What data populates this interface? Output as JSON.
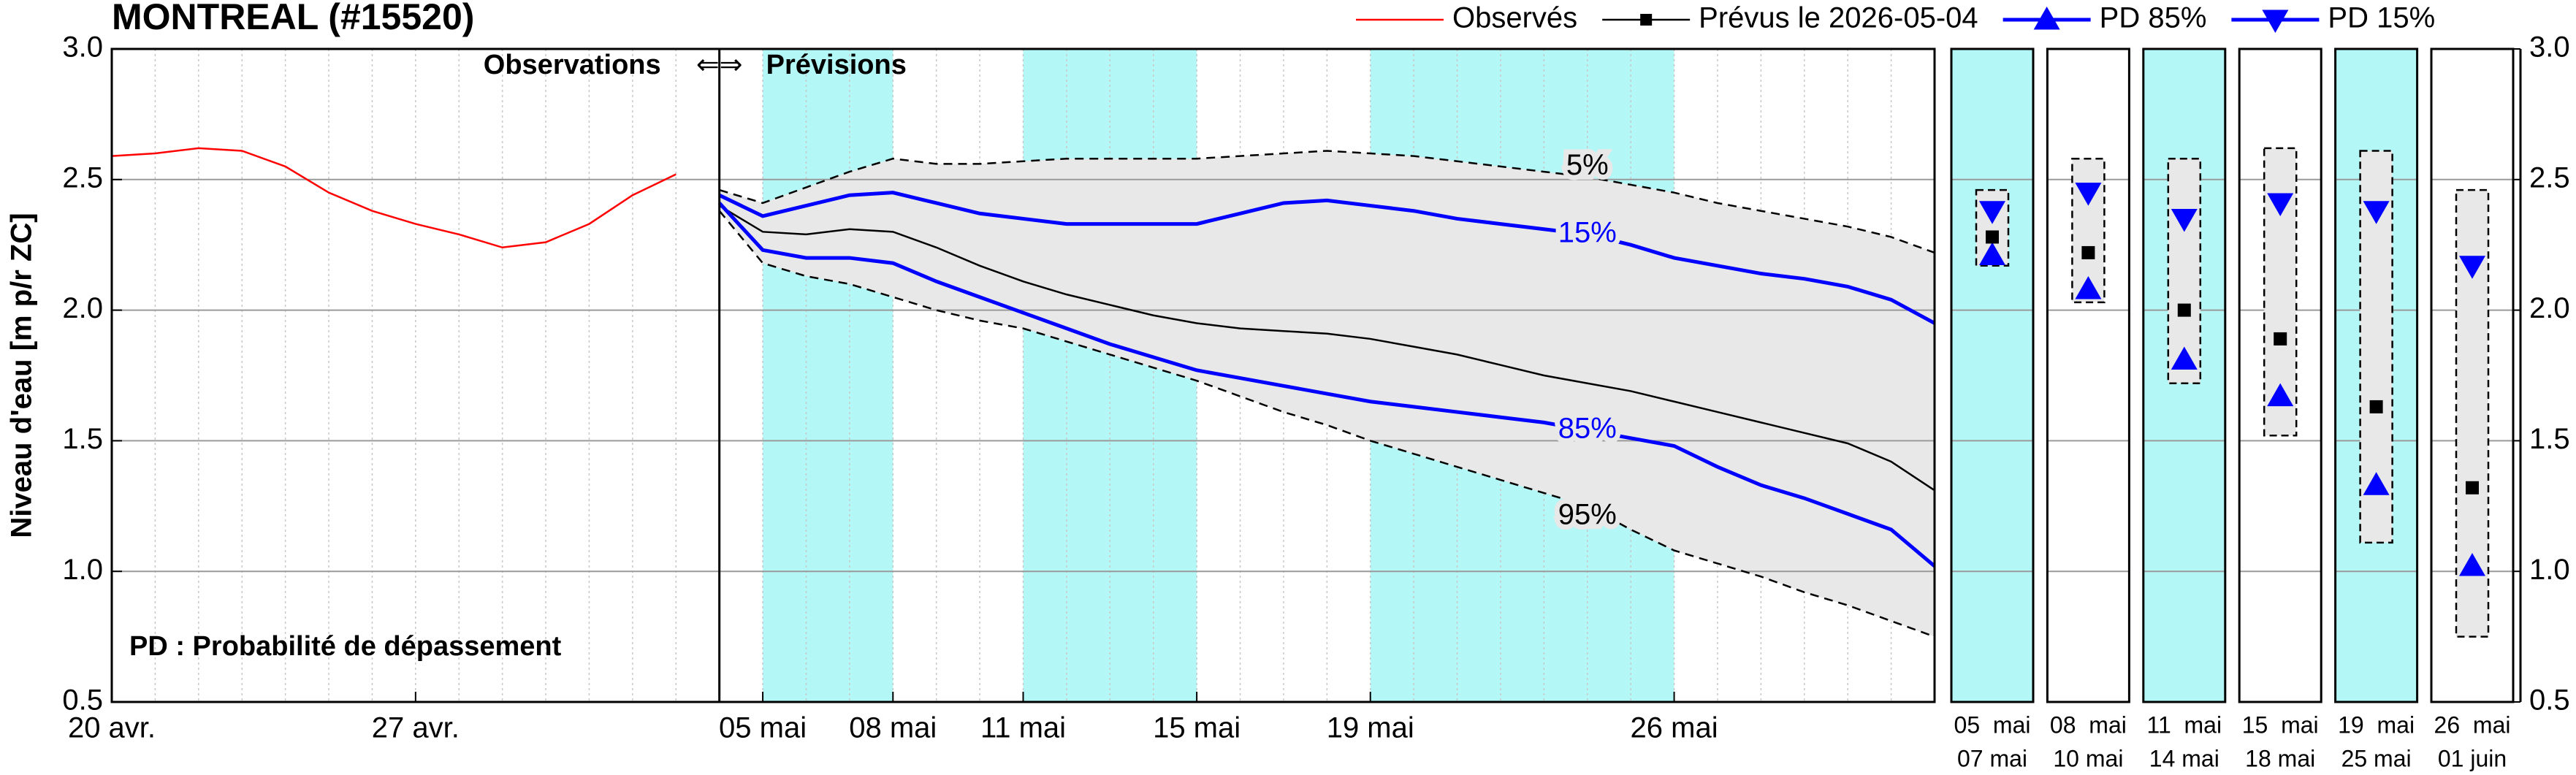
{
  "chart_data": {
    "type": "line",
    "title": "MONTREAL (#15520)",
    "y_label": "Niveau d'eau [m p/r ZC]",
    "observations_label": "Observations",
    "arrows": "⇐⇒",
    "forecast_label": "Prévisions",
    "note": "PD : Probabilité de dépassement",
    "categories": [
      "20 avr.",
      null,
      null,
      null,
      null,
      null,
      null,
      "27 avr.",
      null,
      null,
      null,
      null,
      null,
      null,
      null,
      "05 mai",
      null,
      null,
      "08 mai",
      null,
      null,
      "11 mai",
      null,
      null,
      null,
      "15 mai",
      null,
      null,
      null,
      "19 mai",
      null,
      null,
      null,
      null,
      null,
      null,
      "26 mai",
      null,
      null,
      null,
      null,
      null,
      null
    ],
    "ylim": [
      0.5,
      3.0
    ],
    "yticks": [
      0.5,
      {
        "value": 1,
        "label": "1.0"
      },
      1.5,
      {
        "value": 2,
        "label": "2.0"
      },
      2.5,
      {
        "value": 3,
        "label": "3.0"
      }
    ],
    "grid": true,
    "highlight_color": "#b3f7f7",
    "series": [
      {
        "name": "Observés",
        "color": "#ff0000",
        "width": 2.5,
        "values": [
          2.59,
          2.6,
          2.62,
          2.61,
          2.55,
          2.45,
          2.38,
          2.33,
          2.29,
          2.24,
          2.26,
          2.33,
          2.44,
          2.52,
          null,
          null,
          null,
          null,
          null,
          null,
          null,
          null,
          null,
          null,
          null,
          null,
          null,
          null,
          null,
          null,
          null,
          null,
          null,
          null,
          null,
          null,
          null,
          null,
          null,
          null,
          null,
          null,
          null
        ]
      },
      {
        "name": "Prévus le 2026-05-04",
        "color": "#000000",
        "width": 2.5,
        "marker": "square",
        "values": [
          null,
          null,
          null,
          null,
          null,
          null,
          null,
          null,
          null,
          null,
          null,
          null,
          null,
          null,
          2.4,
          2.3,
          2.29,
          2.31,
          2.3,
          2.24,
          2.17,
          2.11,
          2.06,
          2.02,
          1.98,
          1.95,
          1.93,
          1.92,
          1.91,
          1.89,
          1.86,
          1.83,
          1.79,
          1.75,
          1.72,
          1.69,
          1.65,
          1.61,
          1.57,
          1.53,
          1.49,
          1.42,
          1.31
        ]
      },
      {
        "name": "PD 85%",
        "color": "#0000ff",
        "width": 5,
        "marker": "triangle-up",
        "line_label": "85%",
        "values": [
          null,
          null,
          null,
          null,
          null,
          null,
          null,
          null,
          null,
          null,
          null,
          null,
          null,
          null,
          2.41,
          2.23,
          2.2,
          2.2,
          2.18,
          2.11,
          2.05,
          1.99,
          1.93,
          1.87,
          1.82,
          1.77,
          1.74,
          1.71,
          1.68,
          1.65,
          1.63,
          1.61,
          1.59,
          1.57,
          1.54,
          1.51,
          1.48,
          1.4,
          1.33,
          1.28,
          1.22,
          1.16,
          1.02
        ]
      },
      {
        "name": "PD 15%",
        "color": "#0000ff",
        "width": 5,
        "marker": "triangle-down",
        "line_label": "15%",
        "values": [
          null,
          null,
          null,
          null,
          null,
          null,
          null,
          null,
          null,
          null,
          null,
          null,
          null,
          null,
          2.44,
          2.36,
          2.4,
          2.44,
          2.45,
          2.41,
          2.37,
          2.35,
          2.33,
          2.33,
          2.33,
          2.33,
          2.37,
          2.41,
          2.42,
          2.4,
          2.38,
          2.35,
          2.33,
          2.31,
          2.29,
          2.25,
          2.2,
          2.17,
          2.14,
          2.12,
          2.09,
          2.04,
          1.95
        ]
      }
    ],
    "envelope": {
      "color": "#e8e8e8",
      "upper": {
        "line_label": "5%",
        "values": [
          null,
          null,
          null,
          null,
          null,
          null,
          null,
          null,
          null,
          null,
          null,
          null,
          null,
          null,
          2.46,
          2.41,
          2.47,
          2.53,
          2.58,
          2.56,
          2.56,
          2.57,
          2.58,
          2.58,
          2.58,
          2.58,
          2.59,
          2.6,
          2.61,
          2.6,
          2.59,
          2.57,
          2.55,
          2.53,
          2.51,
          2.48,
          2.45,
          2.41,
          2.38,
          2.35,
          2.32,
          2.28,
          2.22
        ]
      },
      "lower": {
        "line_label": "95%",
        "values": [
          null,
          null,
          null,
          null,
          null,
          null,
          null,
          null,
          null,
          null,
          null,
          null,
          null,
          null,
          2.38,
          2.18,
          2.13,
          2.1,
          2.05,
          2.0,
          1.96,
          1.93,
          1.88,
          1.83,
          1.78,
          1.73,
          1.67,
          1.61,
          1.56,
          1.5,
          1.45,
          1.4,
          1.35,
          1.3,
          1.25,
          1.16,
          1.08,
          1.03,
          0.98,
          0.92,
          0.87,
          0.81,
          0.75
        ]
      }
    },
    "panels": [
      {
        "labels": [
          "05  mai",
          "07 mai"
        ],
        "highlight": true,
        "upper": 2.46,
        "lower": 2.17,
        "forecast": 2.28,
        "pd85": 2.21,
        "pd15": 2.38
      },
      {
        "labels": [
          "08  mai",
          "10 mai"
        ],
        "highlight": false,
        "upper": 2.58,
        "lower": 2.03,
        "forecast": 2.22,
        "pd85": 2.08,
        "pd15": 2.45
      },
      {
        "labels": [
          "11  mai",
          "14 mai"
        ],
        "highlight": true,
        "upper": 2.58,
        "lower": 1.72,
        "forecast": 2.0,
        "pd85": 1.81,
        "pd15": 2.35
      },
      {
        "labels": [
          "15  mai",
          "18 mai"
        ],
        "highlight": false,
        "upper": 2.62,
        "lower": 1.52,
        "forecast": 1.89,
        "pd85": 1.67,
        "pd15": 2.41
      },
      {
        "labels": [
          "19  mai",
          "25 mai"
        ],
        "highlight": true,
        "upper": 2.61,
        "lower": 1.11,
        "forecast": 1.63,
        "pd85": 1.33,
        "pd15": 2.38
      },
      {
        "labels": [
          "26  mai",
          "01 juin"
        ],
        "highlight": false,
        "upper": 2.46,
        "lower": 0.75,
        "forecast": 1.32,
        "pd85": 1.02,
        "pd15": 2.17
      }
    ]
  }
}
